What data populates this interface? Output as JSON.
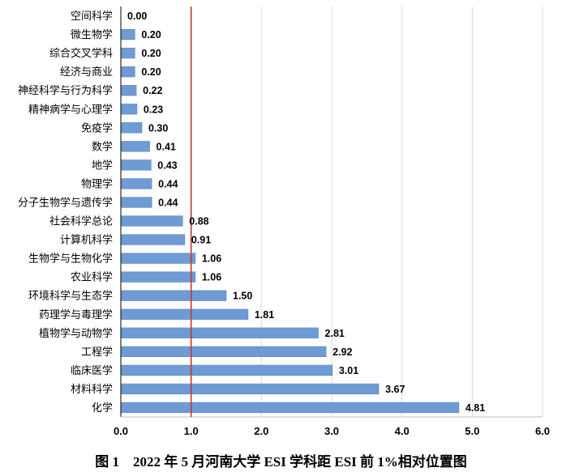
{
  "chart_data": {
    "type": "bar",
    "orientation": "horizontal",
    "title": "",
    "xlabel": "",
    "ylabel": "",
    "categories": [
      "空间科学",
      "微生物学",
      "综合交叉学科",
      "经济与商业",
      "神经科学与行为科学",
      "精神病学与心理学",
      "免疫学",
      "数学",
      "地学",
      "物理学",
      "分子生物学与遗传学",
      "社会科学总论",
      "计算机科学",
      "生物学与生物化学",
      "农业科学",
      "环境科学与生态学",
      "药理学与毒理学",
      "植物学与动物学",
      "工程学",
      "临床医学",
      "材料科学",
      "化学"
    ],
    "values": [
      0.0,
      0.2,
      0.2,
      0.2,
      0.22,
      0.23,
      0.3,
      0.41,
      0.43,
      0.44,
      0.44,
      0.88,
      0.91,
      1.06,
      1.06,
      1.5,
      1.81,
      2.81,
      2.92,
      3.01,
      3.67,
      4.81
    ],
    "value_labels": [
      "0.00",
      "0.20",
      "0.20",
      "0.20",
      "0.22",
      "0.23",
      "0.30",
      "0.41",
      "0.43",
      "0.44",
      "0.44",
      "0.88",
      "0.91",
      "1.06",
      "1.06",
      "1.50",
      "1.81",
      "2.81",
      "2.92",
      "3.01",
      "3.67",
      "4.81"
    ],
    "xlim": [
      0,
      6
    ],
    "xticks": [
      "0.0",
      "1.0",
      "2.0",
      "3.0",
      "4.0",
      "5.0",
      "6.0"
    ],
    "reference_line_x": 1.0,
    "grid": "vertical",
    "legend": "none",
    "colors": {
      "bar": "#6F9BD4",
      "bar_edge": "#5A86C0",
      "reference_line": "#C0392B",
      "grid": "#D9D9D9",
      "axis": "#000000"
    }
  },
  "caption": "图 1　2022 年 5 月河南大学 ESI 学科距 ESI 前 1%相对位置图"
}
